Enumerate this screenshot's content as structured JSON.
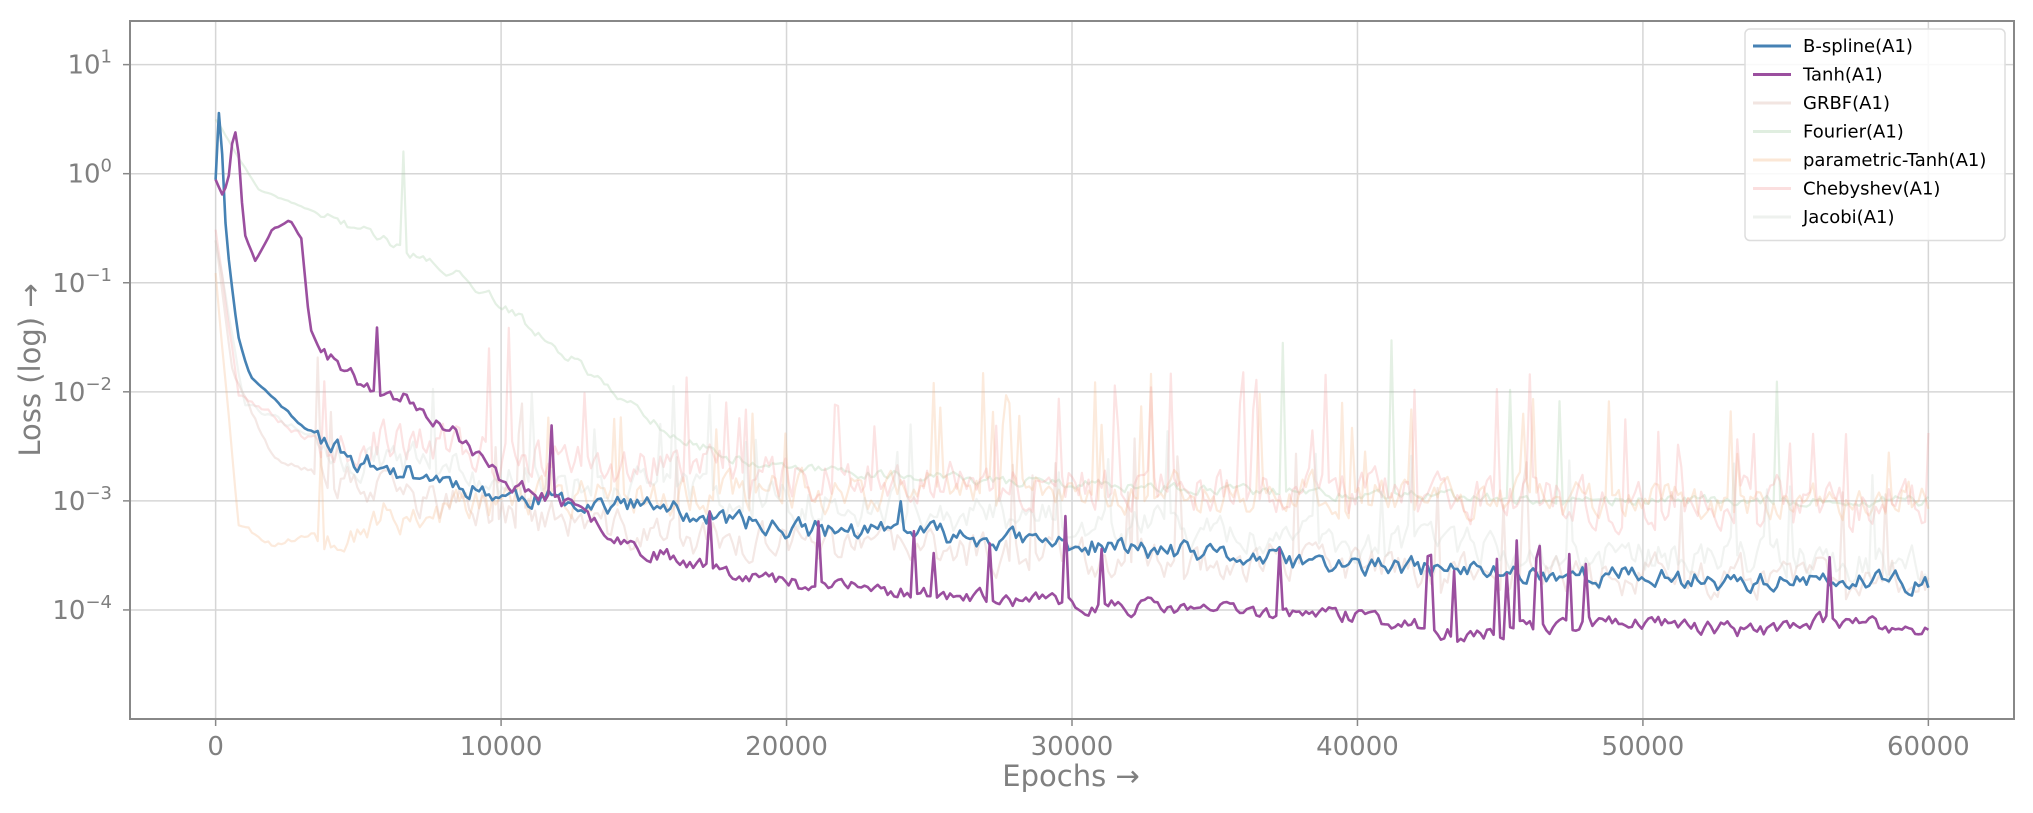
{
  "chart_data": {
    "type": "line",
    "title": "",
    "xlabel": "Epochs →",
    "ylabel": "Loss (log) →",
    "x_scale": "linear",
    "y_scale": "log",
    "xlim": [
      -3000,
      63000
    ],
    "ylim_log10": [
      -5,
      1.4
    ],
    "xticks": [
      0,
      10000,
      20000,
      30000,
      40000,
      50000,
      60000
    ],
    "xtick_labels": [
      "0",
      "10000",
      "20000",
      "30000",
      "40000",
      "50000",
      "60000"
    ],
    "yticks": [
      {
        "exp": 1,
        "base": "10",
        "sup": "1"
      },
      {
        "exp": 0,
        "base": "10",
        "sup": "0"
      },
      {
        "exp": -1,
        "base": "10",
        "sup": "−1"
      },
      {
        "exp": -2,
        "base": "10",
        "sup": "−2"
      },
      {
        "exp": -3,
        "base": "10",
        "sup": "−3"
      },
      {
        "exp": -4,
        "base": "10",
        "sup": "−4"
      }
    ],
    "grid": true,
    "legend_position": "top-right",
    "series": [
      {
        "name": "B-spline(A1)",
        "color": "#4682b4",
        "opacity": 1.0,
        "highlighted": true,
        "seed": 11,
        "noise": 0.16,
        "spike_prob": 0.01,
        "spike_mag": 0.45,
        "points": [
          [
            0,
            -0.05
          ],
          [
            150,
            0.75
          ],
          [
            300,
            -0.3
          ],
          [
            500,
            -0.9
          ],
          [
            800,
            -1.5
          ],
          [
            1200,
            -1.85
          ],
          [
            2000,
            -2.05
          ],
          [
            3000,
            -2.3
          ],
          [
            5000,
            -2.65
          ],
          [
            8000,
            -2.8
          ],
          [
            10000,
            -2.95
          ],
          [
            15000,
            -3.05
          ],
          [
            20000,
            -3.25
          ],
          [
            25000,
            -3.3
          ],
          [
            30000,
            -3.4
          ],
          [
            35000,
            -3.5
          ],
          [
            40000,
            -3.6
          ],
          [
            45000,
            -3.65
          ],
          [
            50000,
            -3.7
          ],
          [
            55000,
            -3.75
          ],
          [
            60000,
            -3.75
          ]
        ]
      },
      {
        "name": "Tanh(A1)",
        "color": "#9b4f9f",
        "opacity": 1.0,
        "highlighted": true,
        "seed": 23,
        "noise": 0.12,
        "spike_prob": 0.03,
        "spike_mag": 0.8,
        "points": [
          [
            0,
            -0.05
          ],
          [
            250,
            -0.2
          ],
          [
            450,
            -0.05
          ],
          [
            650,
            0.45
          ],
          [
            800,
            0.2
          ],
          [
            1000,
            -0.55
          ],
          [
            1400,
            -0.8
          ],
          [
            2000,
            -0.5
          ],
          [
            2600,
            -0.43
          ],
          [
            3000,
            -0.6
          ],
          [
            3300,
            -1.4
          ],
          [
            3600,
            -1.6
          ],
          [
            5000,
            -1.9
          ],
          [
            7000,
            -2.1
          ],
          [
            8500,
            -2.4
          ],
          [
            10000,
            -2.8
          ],
          [
            12000,
            -3.0
          ],
          [
            15000,
            -3.45
          ],
          [
            20000,
            -3.75
          ],
          [
            25000,
            -3.85
          ],
          [
            30000,
            -3.95
          ],
          [
            35000,
            -4.0
          ],
          [
            40000,
            -4.05
          ],
          [
            44000,
            -4.25
          ],
          [
            46000,
            -4.15
          ],
          [
            50000,
            -4.1
          ],
          [
            52000,
            -4.15
          ],
          [
            54000,
            -4.2
          ],
          [
            56000,
            -4.1
          ],
          [
            60000,
            -4.2
          ]
        ]
      },
      {
        "name": "GRBF(A1)",
        "color": "#d9b4a8",
        "opacity": 0.3,
        "highlighted": false,
        "seed": 37,
        "noise": 0.3,
        "spike_prob": 0.05,
        "spike_mag": 1.1,
        "points": [
          [
            0,
            -0.6
          ],
          [
            600,
            -1.8
          ],
          [
            2000,
            -2.6
          ],
          [
            5000,
            -2.9
          ],
          [
            10000,
            -3.1
          ],
          [
            15000,
            -3.3
          ],
          [
            20000,
            -3.4
          ],
          [
            30000,
            -3.5
          ],
          [
            40000,
            -3.6
          ],
          [
            50000,
            -3.7
          ],
          [
            60000,
            -3.7
          ]
        ]
      },
      {
        "name": "Fourier(A1)",
        "color": "#a6cda6",
        "opacity": 0.3,
        "highlighted": false,
        "seed": 41,
        "noise": 0.08,
        "spike_prob": 0.015,
        "spike_mag": 1.5,
        "points": [
          [
            0,
            0.5
          ],
          [
            1500,
            -0.15
          ],
          [
            5000,
            -0.5
          ],
          [
            9000,
            -1.0
          ],
          [
            13000,
            -1.8
          ],
          [
            16000,
            -2.4
          ],
          [
            18000,
            -2.6
          ],
          [
            20000,
            -2.7
          ],
          [
            30000,
            -2.85
          ],
          [
            40000,
            -2.95
          ],
          [
            50000,
            -3.0
          ],
          [
            60000,
            -3.0
          ]
        ]
      },
      {
        "name": "parametric-Tanh(A1)",
        "color": "#f4b98a",
        "opacity": 0.3,
        "highlighted": false,
        "seed": 53,
        "noise": 0.3,
        "spike_prob": 0.08,
        "spike_mag": 1.0,
        "points": [
          [
            0,
            -0.9
          ],
          [
            800,
            -3.2
          ],
          [
            2000,
            -3.4
          ],
          [
            5000,
            -3.2
          ],
          [
            10000,
            -3.0
          ],
          [
            20000,
            -2.9
          ],
          [
            30000,
            -2.9
          ],
          [
            40000,
            -2.95
          ],
          [
            50000,
            -3.0
          ],
          [
            60000,
            -3.0
          ]
        ]
      },
      {
        "name": "Chebyshev(A1)",
        "color": "#f4a2a2",
        "opacity": 0.3,
        "highlighted": false,
        "seed": 67,
        "noise": 0.35,
        "spike_prob": 0.07,
        "spike_mag": 1.0,
        "points": [
          [
            0,
            -0.5
          ],
          [
            800,
            -2.0
          ],
          [
            3000,
            -2.4
          ],
          [
            8000,
            -2.5
          ],
          [
            15000,
            -2.7
          ],
          [
            25000,
            -2.8
          ],
          [
            35000,
            -2.9
          ],
          [
            45000,
            -3.0
          ],
          [
            60000,
            -3.0
          ]
        ]
      },
      {
        "name": "Jacobi(A1)",
        "color": "#cfd8cf",
        "opacity": 0.3,
        "highlighted": false,
        "seed": 79,
        "noise": 0.3,
        "spike_prob": 0.05,
        "spike_mag": 0.9,
        "points": [
          [
            0,
            -0.6
          ],
          [
            1000,
            -2.1
          ],
          [
            5000,
            -2.6
          ],
          [
            10000,
            -2.8
          ],
          [
            20000,
            -3.0
          ],
          [
            30000,
            -3.2
          ],
          [
            40000,
            -3.4
          ],
          [
            50000,
            -3.5
          ],
          [
            60000,
            -3.6
          ]
        ]
      }
    ]
  }
}
